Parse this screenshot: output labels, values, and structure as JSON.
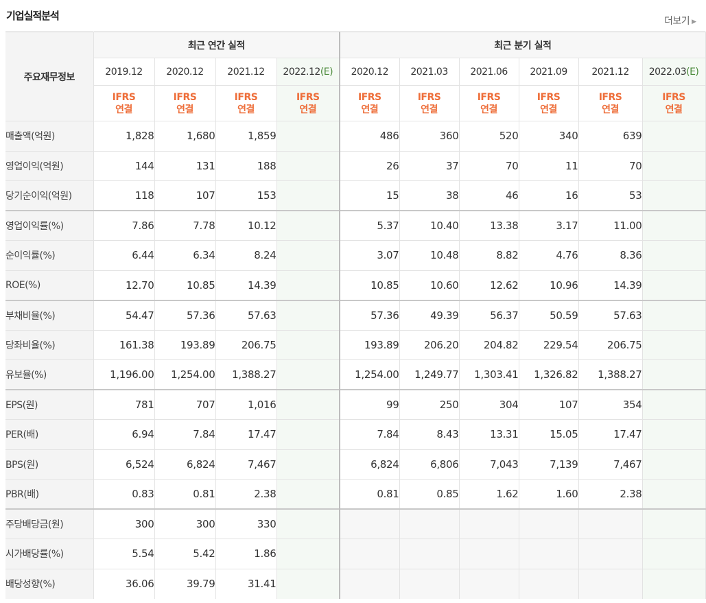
{
  "section_title": "기업실적분석",
  "more_label": "더보기",
  "corner_label": "주요재무정보",
  "annual_group": "최근 연간 실적",
  "quarter_group": "최근 분기 실적",
  "annual_periods": [
    "2019.12",
    "2020.12",
    "2021.12",
    "2022.12"
  ],
  "annual_estimate_mark": "(E)",
  "quarter_periods": [
    "2020.12",
    "2021.03",
    "2021.06",
    "2021.09",
    "2021.12",
    "2022.03"
  ],
  "quarter_estimate_mark": "(E)",
  "ifrs_line1": "IFRS",
  "ifrs_line2": "연결",
  "rows": [
    {
      "label": "매출액(억원)",
      "annual": [
        "1,828",
        "1,680",
        "1,859",
        ""
      ],
      "quarter": [
        "486",
        "360",
        "520",
        "340",
        "639",
        ""
      ]
    },
    {
      "label": "영업이익(억원)",
      "annual": [
        "144",
        "131",
        "188",
        ""
      ],
      "quarter": [
        "26",
        "37",
        "70",
        "11",
        "70",
        ""
      ]
    },
    {
      "label": "당기순이익(억원)",
      "annual": [
        "118",
        "107",
        "153",
        ""
      ],
      "quarter": [
        "15",
        "38",
        "46",
        "16",
        "53",
        ""
      ]
    },
    {
      "label": "영업이익률(%)",
      "annual": [
        "7.86",
        "7.78",
        "10.12",
        ""
      ],
      "quarter": [
        "5.37",
        "10.40",
        "13.38",
        "3.17",
        "11.00",
        ""
      ]
    },
    {
      "label": "순이익률(%)",
      "annual": [
        "6.44",
        "6.34",
        "8.24",
        ""
      ],
      "quarter": [
        "3.07",
        "10.48",
        "8.82",
        "4.76",
        "8.36",
        ""
      ]
    },
    {
      "label": "ROE(%)",
      "annual": [
        "12.70",
        "10.85",
        "14.39",
        ""
      ],
      "quarter": [
        "10.85",
        "10.60",
        "12.62",
        "10.96",
        "14.39",
        ""
      ]
    },
    {
      "label": "부채비율(%)",
      "annual": [
        "54.47",
        "57.36",
        "57.63",
        ""
      ],
      "quarter": [
        "57.36",
        "49.39",
        "56.37",
        "50.59",
        "57.63",
        ""
      ]
    },
    {
      "label": "당좌비율(%)",
      "annual": [
        "161.38",
        "193.89",
        "206.75",
        ""
      ],
      "quarter": [
        "193.89",
        "206.20",
        "204.82",
        "229.54",
        "206.75",
        ""
      ]
    },
    {
      "label": "유보율(%)",
      "annual": [
        "1,196.00",
        "1,254.00",
        "1,388.27",
        ""
      ],
      "quarter": [
        "1,254.00",
        "1,249.77",
        "1,303.41",
        "1,326.82",
        "1,388.27",
        ""
      ]
    },
    {
      "label": "EPS(원)",
      "annual": [
        "781",
        "707",
        "1,016",
        ""
      ],
      "quarter": [
        "99",
        "250",
        "304",
        "107",
        "354",
        ""
      ]
    },
    {
      "label": "PER(배)",
      "annual": [
        "6.94",
        "7.84",
        "17.47",
        ""
      ],
      "quarter": [
        "7.84",
        "8.43",
        "13.31",
        "15.05",
        "17.47",
        ""
      ]
    },
    {
      "label": "BPS(원)",
      "annual": [
        "6,524",
        "6,824",
        "7,467",
        ""
      ],
      "quarter": [
        "6,824",
        "6,806",
        "7,043",
        "7,139",
        "7,467",
        ""
      ]
    },
    {
      "label": "PBR(배)",
      "annual": [
        "0.83",
        "0.81",
        "2.38",
        ""
      ],
      "quarter": [
        "0.81",
        "0.85",
        "1.62",
        "1.60",
        "2.38",
        ""
      ]
    },
    {
      "label": "주당배당금(원)",
      "annual": [
        "300",
        "300",
        "330",
        ""
      ],
      "quarter": [
        "",
        "",
        "",
        "",
        "",
        ""
      ]
    },
    {
      "label": "시가배당률(%)",
      "annual": [
        "5.54",
        "5.42",
        "1.86",
        ""
      ],
      "quarter": [
        "",
        "",
        "",
        "",
        "",
        ""
      ]
    },
    {
      "label": "배당성향(%)",
      "annual": [
        "36.06",
        "39.79",
        "31.41",
        ""
      ],
      "quarter": [
        "",
        "",
        "",
        "",
        "",
        ""
      ]
    }
  ]
}
